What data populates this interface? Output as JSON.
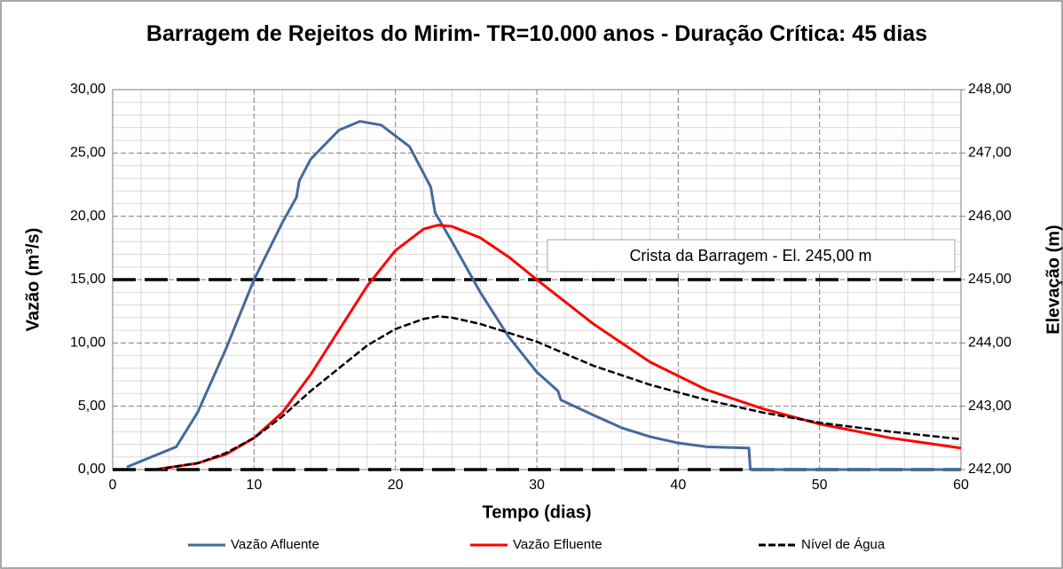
{
  "chart_data": {
    "type": "line",
    "title": "Barragem de Rejeitos do Mirim- TR=10.000 anos - Duração Crítica: 45 dias",
    "xlabel": "Tempo (dias)",
    "ylabel": "Vazão (m³/s)",
    "y2label": "Elevação (m)",
    "xlim": [
      0,
      60
    ],
    "xticks": [
      0,
      10,
      20,
      30,
      40,
      50,
      60
    ],
    "ylim": [
      0,
      30
    ],
    "yticks": [
      {
        "value": 0,
        "label": "0,00"
      },
      {
        "value": 5,
        "label": "5,00"
      },
      {
        "value": 10,
        "label": "10,00"
      },
      {
        "value": 15,
        "label": "15,00"
      },
      {
        "value": 20,
        "label": "20,00"
      },
      {
        "value": 25,
        "label": "25,00"
      },
      {
        "value": 30,
        "label": "30,00"
      }
    ],
    "y2lim": [
      242,
      248
    ],
    "y2ticks": [
      {
        "value": 242,
        "label": "242,00"
      },
      {
        "value": 243,
        "label": "243,00"
      },
      {
        "value": 244,
        "label": "244,00"
      },
      {
        "value": 245,
        "label": "245,00"
      },
      {
        "value": 246,
        "label": "246,00"
      },
      {
        "value": 247,
        "label": "247,00"
      },
      {
        "value": 248,
        "label": "248,00"
      }
    ],
    "grid": true,
    "legend": "bottom",
    "reference_lines": [
      {
        "axis": "y2",
        "value": 245,
        "color": "#000000"
      },
      {
        "axis": "y2",
        "value": 242,
        "color": "#000000"
      }
    ],
    "annotation": "Crista da Barragem - El. 245,00 m",
    "series": [
      {
        "name": "Vazão Afluente",
        "color": "#44699c",
        "axis": "y",
        "dash": false,
        "x": [
          1,
          4.5,
          6,
          8,
          10,
          12,
          13,
          13.2,
          14,
          16,
          17.5,
          19,
          21,
          22.5,
          22.8,
          24,
          26,
          28,
          30,
          31.5,
          31.7,
          34,
          36,
          38,
          40,
          42,
          45,
          45.1,
          60
        ],
        "values": [
          0.2,
          1.8,
          4.5,
          9.5,
          15,
          19.5,
          21.5,
          22.8,
          24.5,
          26.8,
          27.5,
          27.2,
          25.5,
          22.3,
          20.3,
          18,
          14,
          10.5,
          7.7,
          6.2,
          5.5,
          4.3,
          3.3,
          2.6,
          2.1,
          1.8,
          1.7,
          0,
          0
        ]
      },
      {
        "name": "Vazão Efluente",
        "color": "#ff0000",
        "axis": "y",
        "dash": false,
        "x": [
          3,
          6,
          8,
          10,
          12,
          14,
          16,
          18,
          20,
          22,
          23,
          24,
          26,
          28,
          30,
          34,
          38,
          42,
          46,
          50,
          55,
          60
        ],
        "values": [
          0,
          0.5,
          1.2,
          2.5,
          4.5,
          7.5,
          11,
          14.5,
          17.3,
          19,
          19.3,
          19.2,
          18.3,
          16.8,
          15,
          11.5,
          8.5,
          6.3,
          4.8,
          3.6,
          2.5,
          1.7
        ]
      },
      {
        "name": "Nível de Água",
        "color": "#000000",
        "axis": "y2",
        "dash": true,
        "x": [
          3,
          6,
          8,
          10,
          12,
          14,
          16,
          18,
          20,
          22,
          23,
          24,
          26,
          28,
          30,
          34,
          38,
          42,
          46,
          50,
          55,
          60
        ],
        "values": [
          242,
          242.1,
          242.26,
          242.5,
          242.84,
          243.24,
          243.6,
          243.96,
          244.22,
          244.38,
          244.42,
          244.4,
          244.3,
          244.16,
          244.02,
          243.64,
          243.34,
          243.1,
          242.9,
          242.74,
          242.6,
          242.48
        ]
      }
    ]
  }
}
